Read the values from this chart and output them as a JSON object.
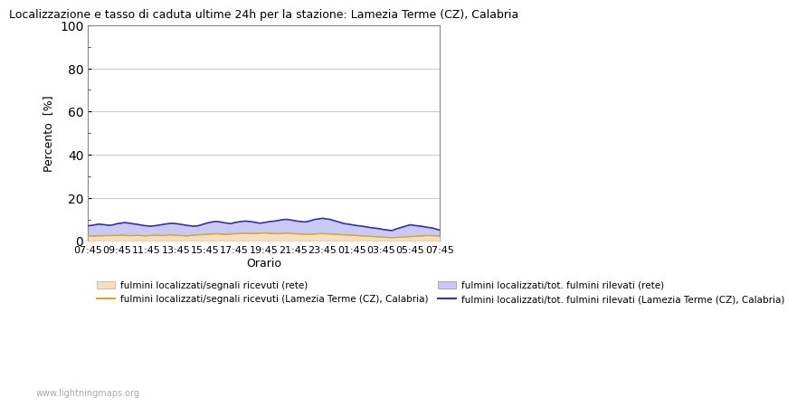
{
  "title": "Localizzazione e tasso di caduta ultime 24h per la stazione: Lamezia Terme (CZ), Calabria",
  "ylabel": "Percento  [%]",
  "xlabel": "Orario",
  "ylim": [
    0,
    100
  ],
  "yticks": [
    0,
    20,
    40,
    60,
    80,
    100
  ],
  "yticks_minor": [
    10,
    30,
    50,
    70,
    90
  ],
  "xtick_labels": [
    "07:45",
    "09:45",
    "11:45",
    "13:45",
    "15:45",
    "17:45",
    "19:45",
    "21:45",
    "23:45",
    "01:45",
    "03:45",
    "05:45",
    "07:45"
  ],
  "watermark": "www.lightningmaps.org",
  "fill_rete_color": "#f5dfc0",
  "fill_rete_edge": "#c8a882",
  "fill_local_color": "#c8caf5",
  "fill_local_edge": "#8888cc",
  "line_rete_color": "#d4a820",
  "line_local_color": "#3333aa",
  "legend_labels": [
    "fulmini localizzati/segnali ricevuti (rete)",
    "fulmini localizzati/segnali ricevuti (Lamezia Terme (CZ), Calabria)",
    "fulmini localizzati/tot. fulmini rilevati (rete)",
    "fulmini localizzati/tot. fulmini rilevati (Lamezia Terme (CZ), Calabria)"
  ],
  "n_points": 97,
  "rete_fill_values": [
    2.1,
    2.3,
    2.2,
    2.4,
    2.3,
    2.5,
    2.4,
    2.6,
    2.5,
    2.7,
    2.6,
    2.5,
    2.4,
    2.6,
    2.5,
    2.4,
    2.3,
    2.5,
    2.6,
    2.7,
    2.5,
    2.6,
    2.8,
    2.7,
    2.6,
    2.5,
    2.4,
    2.3,
    2.5,
    2.7,
    2.8,
    2.9,
    3.0,
    3.1,
    3.2,
    3.3,
    3.2,
    3.1,
    3.0,
    3.2,
    3.3,
    3.4,
    3.5,
    3.6,
    3.5,
    3.4,
    3.5,
    3.6,
    3.7,
    3.6,
    3.5,
    3.4,
    3.3,
    3.5,
    3.6,
    3.5,
    3.4,
    3.3,
    3.2,
    3.1,
    3.0,
    3.1,
    3.2,
    3.3,
    3.4,
    3.3,
    3.2,
    3.1,
    3.0,
    2.9,
    2.8,
    2.7,
    2.6,
    2.5,
    2.4,
    2.3,
    2.2,
    2.1,
    2.0,
    1.9,
    1.8,
    1.7,
    1.6,
    1.5,
    1.6,
    1.7,
    1.8,
    1.9,
    2.0,
    2.1,
    2.2,
    2.3,
    2.4,
    2.5,
    2.4,
    2.3,
    2.2
  ],
  "local_fill_values": [
    7.0,
    7.2,
    7.5,
    7.8,
    7.6,
    7.4,
    7.2,
    7.5,
    8.0,
    8.2,
    8.5,
    8.3,
    8.0,
    7.8,
    7.5,
    7.2,
    7.0,
    6.8,
    7.0,
    7.2,
    7.5,
    7.8,
    8.0,
    8.2,
    8.0,
    7.8,
    7.5,
    7.2,
    7.0,
    6.8,
    7.0,
    7.5,
    8.0,
    8.5,
    8.8,
    9.0,
    8.8,
    8.5,
    8.2,
    8.0,
    8.5,
    8.8,
    9.0,
    9.2,
    9.0,
    8.8,
    8.5,
    8.2,
    8.5,
    8.8,
    9.0,
    9.2,
    9.5,
    9.8,
    10.0,
    9.8,
    9.5,
    9.2,
    9.0,
    8.8,
    9.0,
    9.5,
    10.0,
    10.2,
    10.5,
    10.2,
    10.0,
    9.5,
    9.0,
    8.5,
    8.0,
    7.8,
    7.5,
    7.2,
    7.0,
    6.8,
    6.5,
    6.2,
    6.0,
    5.8,
    5.5,
    5.2,
    5.0,
    4.8,
    5.5,
    6.0,
    6.5,
    7.0,
    7.5,
    7.2,
    7.0,
    6.8,
    6.5,
    6.2,
    6.0,
    5.5,
    5.0
  ]
}
